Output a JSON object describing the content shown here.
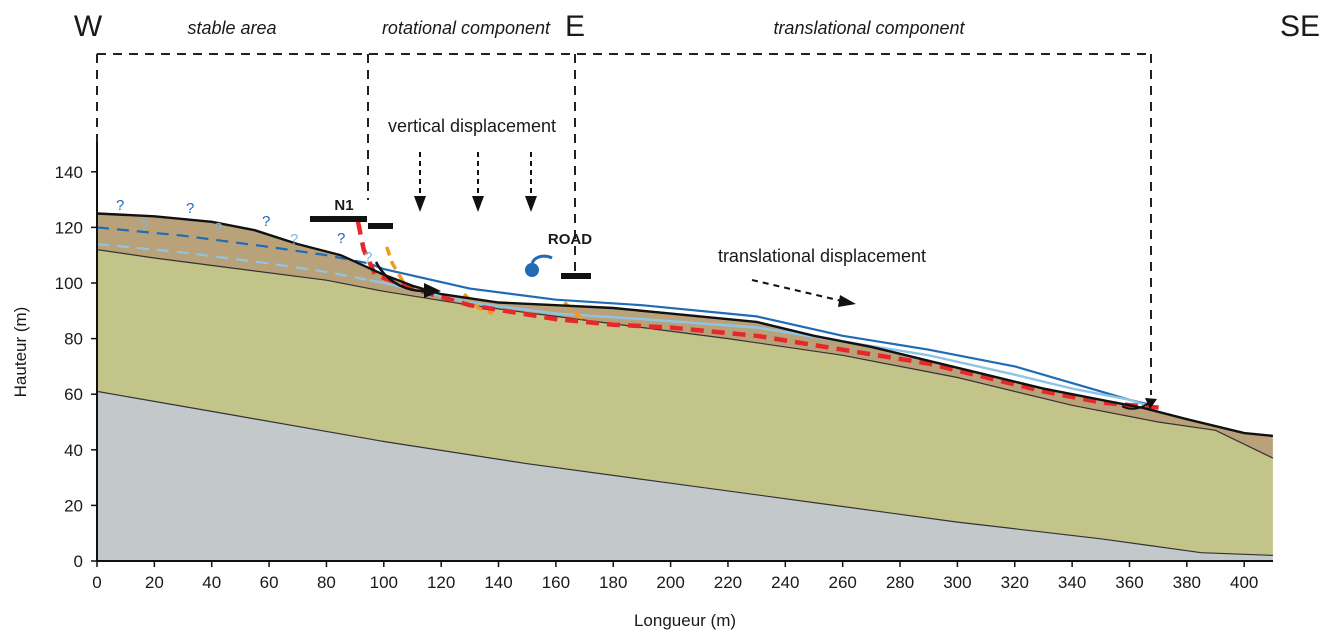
{
  "directions": {
    "w": "W",
    "e": "E",
    "se": "SE"
  },
  "zones": {
    "stable": "stable area",
    "rotational": "rotational component",
    "translational": "translational component"
  },
  "annotations": {
    "vertical": "vertical displacement",
    "translational": "translational displacement",
    "n1": "N1",
    "road": "ROAD",
    "unknown_mark": "?"
  },
  "axes": {
    "xlabel": "Longueur (m)",
    "ylabel": "Hauteur (m)",
    "xlim": [
      0,
      410
    ],
    "ylim": [
      0,
      150
    ],
    "xticks": [
      "0",
      "20",
      "40",
      "60",
      "80",
      "100",
      "120",
      "140",
      "160",
      "180",
      "200",
      "220",
      "240",
      "260",
      "280",
      "300",
      "320",
      "340",
      "360",
      "380",
      "400"
    ],
    "yticks": [
      "0",
      "20",
      "40",
      "60",
      "80",
      "100",
      "120",
      "140"
    ]
  },
  "colors": {
    "bedrock": "#c3c9cb",
    "substratum": "#c3c48a",
    "landslide_mass": "#b9a27a",
    "water_table_deep": "#1f6bb5",
    "water_table_shallow": "#8ec5e6",
    "slip_surface": "#e5282a",
    "secondary_failure": "#f39a1e",
    "outline": "#111111"
  },
  "profile": {
    "ground_surface": [
      [
        0,
        125
      ],
      [
        20,
        124
      ],
      [
        40,
        122
      ],
      [
        55,
        119
      ],
      [
        70,
        114
      ],
      [
        85,
        110
      ],
      [
        100,
        103
      ],
      [
        110,
        99
      ],
      [
        120,
        96
      ],
      [
        140,
        93
      ],
      [
        160,
        92
      ],
      [
        180,
        91
      ],
      [
        200,
        89
      ],
      [
        230,
        86
      ],
      [
        250,
        81
      ],
      [
        270,
        77
      ],
      [
        290,
        72
      ],
      [
        310,
        67
      ],
      [
        330,
        62
      ],
      [
        350,
        58
      ],
      [
        365,
        55
      ],
      [
        380,
        51
      ],
      [
        400,
        46
      ],
      [
        410,
        45
      ]
    ],
    "substratum_top": [
      [
        0,
        112
      ],
      [
        20,
        109
      ],
      [
        50,
        105
      ],
      [
        80,
        101
      ],
      [
        100,
        97
      ],
      [
        130,
        92
      ],
      [
        160,
        88
      ],
      [
        190,
        84
      ],
      [
        220,
        80
      ],
      [
        260,
        74
      ],
      [
        300,
        66
      ],
      [
        340,
        56
      ],
      [
        370,
        50
      ],
      [
        390,
        47
      ],
      [
        410,
        37
      ]
    ],
    "bedrock_top": [
      [
        0,
        61
      ],
      [
        50,
        52
      ],
      [
        100,
        43
      ],
      [
        150,
        35
      ],
      [
        200,
        28
      ],
      [
        250,
        21
      ],
      [
        300,
        14
      ],
      [
        350,
        8
      ],
      [
        385,
        3
      ],
      [
        410,
        2
      ]
    ],
    "slip_surface": [
      [
        91,
        122
      ],
      [
        93,
        112
      ],
      [
        97,
        103
      ],
      [
        110,
        98
      ],
      [
        130,
        92
      ],
      [
        160,
        87
      ],
      [
        180,
        85
      ],
      [
        200,
        84
      ],
      [
        230,
        81
      ],
      [
        260,
        76
      ],
      [
        290,
        71
      ],
      [
        310,
        66
      ],
      [
        330,
        61
      ],
      [
        350,
        57
      ],
      [
        372,
        55
      ]
    ],
    "water_table_deep": [
      [
        0,
        120
      ],
      [
        30,
        117
      ],
      [
        60,
        113
      ],
      [
        80,
        110
      ],
      [
        95,
        107
      ],
      [
        100,
        105
      ],
      [
        130,
        98
      ],
      [
        160,
        94
      ],
      [
        190,
        92
      ],
      [
        230,
        88
      ],
      [
        260,
        81
      ],
      [
        290,
        76
      ],
      [
        320,
        70
      ],
      [
        340,
        64
      ],
      [
        360,
        58
      ],
      [
        368,
        56
      ]
    ],
    "water_table_shallow": [
      [
        0,
        114
      ],
      [
        30,
        111
      ],
      [
        60,
        107
      ],
      [
        80,
        104
      ],
      [
        95,
        101
      ],
      [
        100,
        100
      ],
      [
        130,
        93
      ],
      [
        160,
        89
      ],
      [
        190,
        87
      ],
      [
        230,
        84
      ],
      [
        260,
        79
      ],
      [
        290,
        74
      ],
      [
        320,
        67
      ],
      [
        340,
        62
      ],
      [
        360,
        58
      ],
      [
        366,
        56
      ]
    ]
  }
}
